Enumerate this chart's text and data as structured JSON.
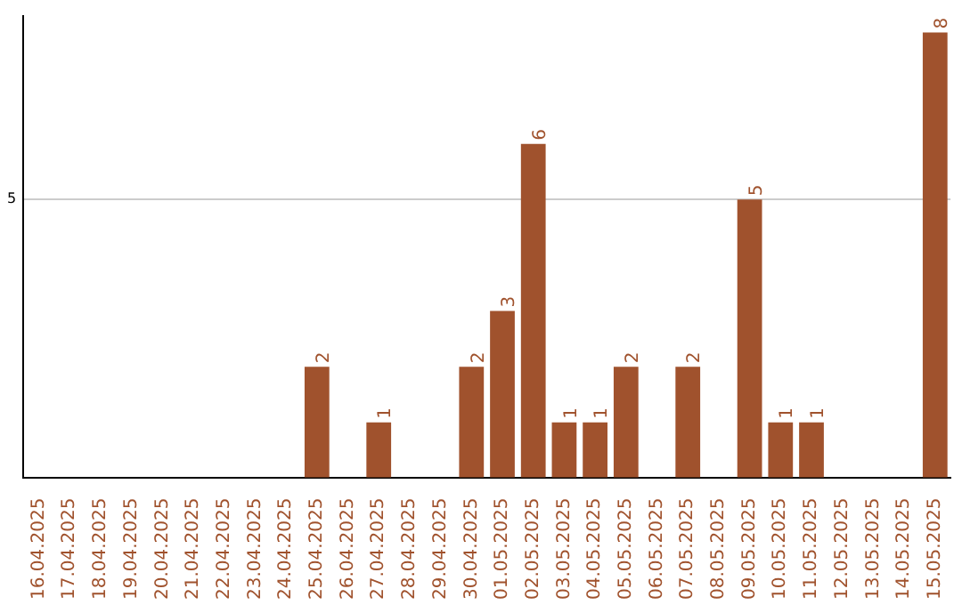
{
  "chart_data": {
    "type": "bar",
    "categories": [
      "16.04.2025",
      "17.04.2025",
      "18.04.2025",
      "19.04.2025",
      "20.04.2025",
      "21.04.2025",
      "22.04.2025",
      "23.04.2025",
      "24.04.2025",
      "25.04.2025",
      "26.04.2025",
      "27.04.2025",
      "28.04.2025",
      "29.04.2025",
      "30.04.2025",
      "01.05.2025",
      "02.05.2025",
      "03.05.2025",
      "04.05.2025",
      "05.05.2025",
      "06.05.2025",
      "07.05.2025",
      "08.05.2025",
      "09.05.2025",
      "10.05.2025",
      "11.05.2025",
      "12.05.2025",
      "13.05.2025",
      "14.05.2025",
      "15.05.2025"
    ],
    "values": [
      0,
      0,
      0,
      0,
      0,
      0,
      0,
      0,
      0,
      2,
      0,
      1,
      0,
      0,
      2,
      3,
      6,
      1,
      1,
      2,
      0,
      2,
      0,
      5,
      1,
      1,
      0,
      0,
      0,
      8
    ],
    "value_labels": [
      null,
      null,
      null,
      null,
      null,
      null,
      null,
      null,
      null,
      "2",
      null,
      "1",
      null,
      null,
      "2",
      "3",
      "6",
      "1",
      "1",
      "2",
      null,
      "2",
      null,
      "5",
      "1",
      "1",
      null,
      null,
      null,
      "8"
    ],
    "color": "#a0522d",
    "ylim": [
      0,
      8.3
    ],
    "yticks": [
      {
        "value": 0,
        "label": null
      },
      5
    ],
    "grid": "y",
    "legend": false
  }
}
